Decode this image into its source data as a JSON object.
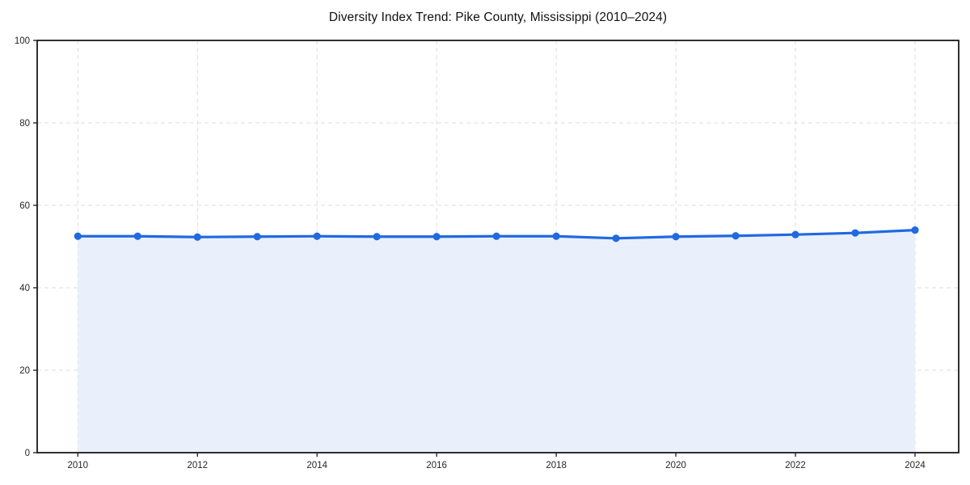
{
  "chart_data": {
    "type": "area",
    "title": "Diversity Index Trend: Pike County, Mississippi (2010–2024)",
    "x": [
      2010,
      2011,
      2012,
      2013,
      2014,
      2015,
      2016,
      2017,
      2018,
      2019,
      2020,
      2021,
      2022,
      2023,
      2024
    ],
    "series": [
      {
        "name": "Diversity Index",
        "values": [
          52.5,
          52.5,
          52.3,
          52.4,
          52.5,
          52.4,
          52.4,
          52.5,
          52.5,
          52.0,
          52.4,
          52.6,
          52.9,
          53.3,
          54.0
        ]
      }
    ],
    "xlabel": "",
    "ylabel": "",
    "xlim": [
      2009.32,
      2024.73
    ],
    "ylim": [
      0,
      100
    ],
    "xticks": [
      2010,
      2012,
      2014,
      2016,
      2018,
      2020,
      2022,
      2024
    ],
    "yticks": [
      0,
      20,
      40,
      60,
      80,
      100
    ],
    "grid": "dashed-both",
    "legend": "none",
    "colors": {
      "line": "#2169e0",
      "marker": "#2169e0",
      "fill": "#e9f0fc",
      "grid": "#dcdcdc",
      "axis": "#1a1a1a",
      "tick_label": "#262626",
      "title": "#111111",
      "background": "#ffffff"
    }
  }
}
